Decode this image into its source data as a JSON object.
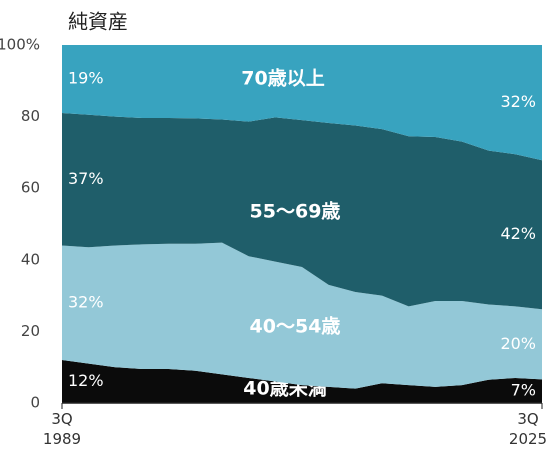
{
  "chart_data": {
    "type": "stacked-area",
    "title": "純資産",
    "categories": [
      "3Q 1989",
      null,
      null,
      null,
      null,
      null,
      null,
      null,
      null,
      null,
      null,
      null,
      null,
      null,
      null,
      null,
      null,
      null,
      "3Q 2025"
    ],
    "series": [
      {
        "name": "40歳未満",
        "color": "#0b0b0b",
        "values": [
          12,
          11,
          10,
          9.5,
          9.5,
          9,
          8,
          7,
          6,
          5,
          4.5,
          4,
          5.5,
          5,
          4.5,
          5,
          6.5,
          7,
          6.6
        ],
        "value_labels": [
          "12%",
          null,
          null,
          null,
          null,
          null,
          null,
          null,
          null,
          null,
          null,
          null,
          null,
          null,
          null,
          null,
          null,
          null,
          "7%"
        ]
      },
      {
        "name": "40～54歳",
        "color": "#93c8d7",
        "values": [
          32,
          32.5,
          34,
          34.8,
          35,
          35.5,
          36.8,
          34,
          33.5,
          33,
          28.5,
          27,
          24.5,
          22,
          24,
          23.5,
          21,
          20,
          19.6
        ],
        "value_labels": [
          "32%",
          null,
          null,
          null,
          null,
          null,
          null,
          null,
          null,
          null,
          null,
          null,
          null,
          null,
          null,
          null,
          null,
          null,
          "20%"
        ]
      },
      {
        "name": "55～69歳",
        "color": "#1f5e6a",
        "values": [
          37,
          37,
          36,
          35.3,
          35.1,
          35,
          34.4,
          37.6,
          40.3,
          41,
          45.2,
          46.5,
          46.5,
          47.5,
          45.8,
          44.5,
          43,
          42.5,
          41.6
        ],
        "value_labels": [
          "37%",
          null,
          null,
          null,
          null,
          null,
          null,
          null,
          null,
          null,
          null,
          null,
          null,
          null,
          null,
          null,
          null,
          null,
          "42%"
        ]
      },
      {
        "name": "70歳以上",
        "color": "#38a3bf",
        "values": [
          19,
          19.5,
          20,
          20.4,
          20.4,
          20.5,
          20.8,
          21.4,
          20.2,
          21,
          21.8,
          22.5,
          23.5,
          25.5,
          25.7,
          27,
          29.5,
          30.5,
          32.2
        ],
        "value_labels": [
          "19%",
          null,
          null,
          null,
          null,
          null,
          null,
          null,
          null,
          null,
          null,
          null,
          null,
          null,
          null,
          null,
          null,
          null,
          "32%"
        ]
      }
    ],
    "ylim": [
      0,
      100
    ],
    "yticks": [
      0,
      20,
      40,
      60,
      80,
      {
        "value": 100,
        "label": "100%"
      }
    ]
  }
}
